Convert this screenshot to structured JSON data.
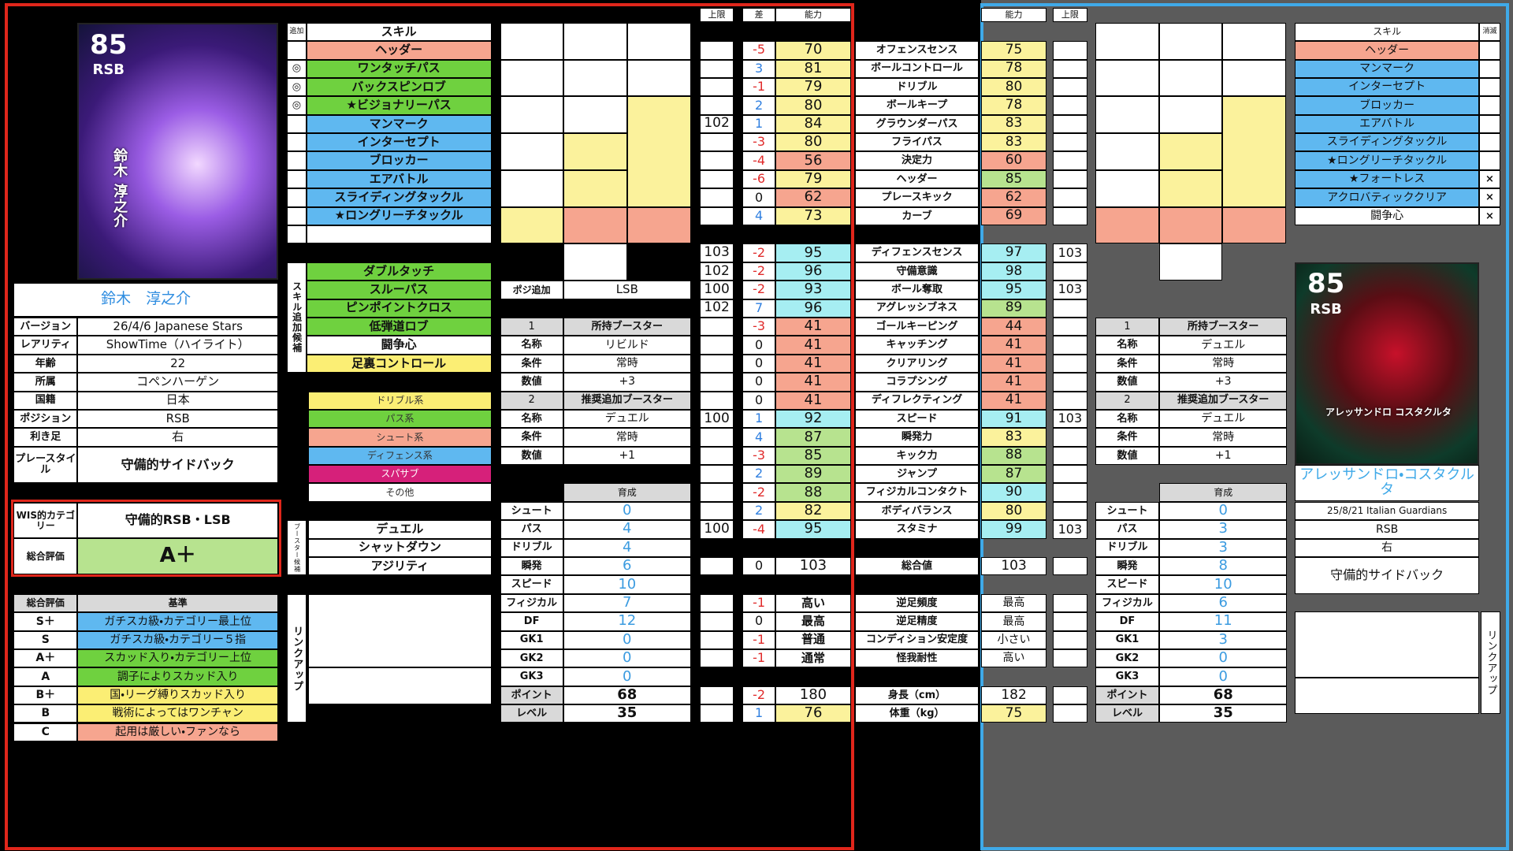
{
  "headers": {
    "cap": "上限",
    "diff": "差",
    "ability": "能力",
    "ability_r": "能力",
    "cap_r": "上限"
  },
  "player": {
    "card": {
      "rating": "85",
      "position": "RSB",
      "name": "鈴木 淳之介"
    },
    "name": "鈴木　淳之介",
    "info": [
      {
        "label": "バージョン",
        "value": "26/4/6 Japanese Stars"
      },
      {
        "label": "レアリティ",
        "value": "ShowTime（ハイライト）"
      },
      {
        "label": "年齢",
        "value": 22
      },
      {
        "label": "所属",
        "value": "コペンハーゲン"
      },
      {
        "label": "国籍",
        "value": "日本"
      },
      {
        "label": "ポジション",
        "value": "RSB"
      },
      {
        "label": "利き足",
        "value": "右"
      },
      {
        "label": "プレースタイル",
        "value": "守備的サイドバック"
      }
    ],
    "wis": {
      "label": "WIS的カテゴリー",
      "value": "守備的RSB・LSB"
    },
    "grade": {
      "label": "総合評価",
      "value": "A＋"
    }
  },
  "criteria": {
    "header": {
      "grade": "総合評価",
      "basis": "基準"
    },
    "rows": [
      {
        "grade": "S＋",
        "basis": "ガチスカ級・カテゴリー最上位"
      },
      {
        "grade": "S",
        "basis": "ガチスカ級・カテゴリー５指"
      },
      {
        "grade": "A＋",
        "basis": "スカッド入り・カテゴリー上位"
      },
      {
        "grade": "A",
        "basis": "調子によりスカッド入り"
      },
      {
        "grade": "B＋",
        "basis": "国・リーグ縛りスカッド入り"
      },
      {
        "grade": "B",
        "basis": "戦術によってはワンチャン"
      },
      {
        "grade": "C",
        "basis": "起用は厳しい・ファンなら"
      }
    ]
  },
  "skills": {
    "header": {
      "mark": "追加",
      "name": "スキル"
    },
    "rows": [
      {
        "name": "ヘッダー"
      },
      {
        "mark": "◎",
        "name": "ワンタッチパス"
      },
      {
        "mark": "◎",
        "name": "バックスピンロブ"
      },
      {
        "mark": "◎",
        "name": "★ビジョナリーパス"
      },
      {
        "name": "マンマーク"
      },
      {
        "name": "インターセプト"
      },
      {
        "name": "ブロッカー"
      },
      {
        "name": "エアバトル"
      },
      {
        "name": "スライディングタックル"
      },
      {
        "name": "★ロングリーチタックル"
      }
    ]
  },
  "candidates": {
    "label": "スキル追加候補",
    "rows": [
      "ダブルタッチ",
      "スルーパス",
      "ピンポイントクロス",
      "低弾道ロブ",
      "闘争心",
      "足裏コントロール"
    ]
  },
  "legend": [
    "ドリブル系",
    "パス系",
    "シュート系",
    "ディフェンス系",
    "スパサブ",
    "その他"
  ],
  "booster_candidates": {
    "label": "ブースター候補",
    "rows": [
      "デュエル",
      "シャットダウン",
      "アジリティ"
    ]
  },
  "linkup_left": "リンクアップ",
  "position_add": {
    "label": "ポジ追加",
    "value": "LSB"
  },
  "boosters_left": [
    {
      "no": 1,
      "title": "所持ブースター",
      "rows": [
        {
          "label": "名称",
          "value": "リビルド"
        },
        {
          "label": "条件",
          "value": "常時"
        },
        {
          "label": "数値",
          "value": "+3"
        }
      ]
    },
    {
      "no": 2,
      "title": "推奨追加ブースター",
      "rows": [
        {
          "label": "名称",
          "value": "デュエル"
        },
        {
          "label": "条件",
          "value": "常時"
        },
        {
          "label": "数値",
          "value": "+1"
        }
      ]
    }
  ],
  "training_left": {
    "title": "育成",
    "rows": [
      {
        "label": "シュート",
        "value": 0
      },
      {
        "label": "パス",
        "value": 4
      },
      {
        "label": "ドリブル",
        "value": 4
      },
      {
        "label": "瞬発",
        "value": 6
      },
      {
        "label": "スピード",
        "value": 10
      },
      {
        "label": "フィジカル",
        "value": 7
      },
      {
        "label": "DF",
        "value": 12
      },
      {
        "label": "GK1",
        "value": 0
      },
      {
        "label": "GK2",
        "value": 0
      },
      {
        "label": "GK3",
        "value": 0
      },
      {
        "label": "ポイント",
        "value": 68
      },
      {
        "label": "レベル",
        "value": 35
      }
    ]
  },
  "stats": [
    {
      "diff": -5,
      "left": 70,
      "name": "オフェンスセンス",
      "right": 75
    },
    {
      "diff": 3,
      "left": 81,
      "name": "ボールコントロール",
      "right": 78
    },
    {
      "diff": -1,
      "left": 79,
      "name": "ドリブル",
      "right": 80
    },
    {
      "diff": 2,
      "left": 80,
      "name": "ボールキープ",
      "right": 78
    },
    {
      "cap": 102,
      "diff": 1,
      "left": 84,
      "name": "グラウンダーパス",
      "right": 83
    },
    {
      "diff": -3,
      "left": 80,
      "name": "フライパス",
      "right": 83
    },
    {
      "diff": -4,
      "left": 56,
      "name": "決定力",
      "right": 60
    },
    {
      "diff": -6,
      "left": 79,
      "name": "ヘッダー",
      "right": 85
    },
    {
      "diff": 0,
      "left": 62,
      "name": "プレースキック",
      "right": 62
    },
    {
      "diff": 4,
      "left": 73,
      "name": "カーブ",
      "right": 69
    },
    {
      "cap": 103,
      "diff": -2,
      "left": 95,
      "name": "ディフェンスセンス",
      "right": 97,
      "cap_r": 103
    },
    {
      "cap": 102,
      "diff": -2,
      "left": 96,
      "name": "守備意識",
      "right": 98
    },
    {
      "cap": 100,
      "diff": -2,
      "left": 93,
      "name": "ボール奪取",
      "right": 95,
      "cap_r": 103
    },
    {
      "cap": 102,
      "diff": 7,
      "left": 96,
      "name": "アグレッシブネス",
      "right": 89
    },
    {
      "diff": -3,
      "left": 41,
      "name": "ゴールキーピング",
      "right": 44
    },
    {
      "diff": 0,
      "left": 41,
      "name": "キャッチング",
      "right": 41
    },
    {
      "diff": 0,
      "left": 41,
      "name": "クリアリング",
      "right": 41
    },
    {
      "diff": 0,
      "left": 41,
      "name": "コラプシング",
      "right": 41
    },
    {
      "diff": 0,
      "left": 41,
      "name": "ディフレクティング",
      "right": 41
    },
    {
      "cap": 100,
      "diff": 1,
      "left": 92,
      "name": "スピード",
      "right": 91,
      "cap_r": 103
    },
    {
      "diff": 4,
      "left": 87,
      "name": "瞬発力",
      "right": 83
    },
    {
      "diff": -3,
      "left": 85,
      "name": "キック力",
      "right": 88
    },
    {
      "diff": 2,
      "left": 89,
      "name": "ジャンプ",
      "right": 87
    },
    {
      "diff": -2,
      "left": 88,
      "name": "フィジカルコンタクト",
      "right": 90
    },
    {
      "diff": 2,
      "left": 82,
      "name": "ボディバランス",
      "right": 80
    },
    {
      "cap": 100,
      "diff": -4,
      "left": 95,
      "name": "スタミナ",
      "right": 99,
      "cap_r": 103
    },
    {
      "diff": 0,
      "left": 103,
      "name": "総合値",
      "right": 103
    },
    {
      "diff": -1,
      "left": "高い",
      "name": "逆足頻度",
      "right": "最高"
    },
    {
      "diff": 0,
      "left": "最高",
      "name": "逆足精度",
      "right": "最高"
    },
    {
      "diff": -1,
      "left": "普通",
      "name": "コンディション安定度",
      "right": "小さい"
    },
    {
      "diff": -1,
      "left": "通常",
      "name": "怪我耐性",
      "right": "高い"
    },
    {
      "diff": -2,
      "left": 180,
      "name": "身長（cm）",
      "right": 182
    },
    {
      "diff": 1,
      "left": 76,
      "name": "体重（kg）",
      "right": 75
    }
  ],
  "rival": {
    "card": {
      "rating": "85",
      "position": "RSB",
      "name": "アレッサンドロ コスタクルタ"
    },
    "name": "アレッサンドロ・コスタクルタ",
    "version": "25/8/21 Italian Guardians",
    "position": "RSB",
    "foot": "右",
    "style": "守備的サイドバック",
    "skills": {
      "header": {
        "name": "スキル",
        "lost": "消滅"
      },
      "rows": [
        {
          "name": "ヘッダー"
        },
        {
          "name": "マンマーク"
        },
        {
          "name": "インターセプト"
        },
        {
          "name": "ブロッカー"
        },
        {
          "name": "エアバトル"
        },
        {
          "name": "スライディングタックル"
        },
        {
          "name": "★ロングリーチタックル"
        },
        {
          "name": "★フォートレス",
          "lost": "×"
        },
        {
          "name": "アクロバティッククリア",
          "lost": "×"
        },
        {
          "name": "闘争心",
          "lost": "×"
        }
      ]
    },
    "boosters": [
      {
        "no": 1,
        "title": "所持ブースター",
        "rows": [
          {
            "label": "名称",
            "value": "デュエル"
          },
          {
            "label": "条件",
            "value": "常時"
          },
          {
            "label": "数値",
            "value": "+3"
          }
        ]
      },
      {
        "no": 2,
        "title": "推奨追加ブースター",
        "rows": [
          {
            "label": "名称",
            "value": "デュエル"
          },
          {
            "label": "条件",
            "value": "常時"
          },
          {
            "label": "数値",
            "value": "+1"
          }
        ]
      }
    ],
    "training": {
      "title": "育成",
      "rows": [
        {
          "label": "シュート",
          "value": 0
        },
        {
          "label": "パス",
          "value": 3
        },
        {
          "label": "ドリブル",
          "value": 3
        },
        {
          "label": "瞬発",
          "value": 8
        },
        {
          "label": "スピード",
          "value": 10
        },
        {
          "label": "フィジカル",
          "value": 6
        },
        {
          "label": "DF",
          "value": 11
        },
        {
          "label": "GK1",
          "value": 3
        },
        {
          "label": "GK2",
          "value": 0
        },
        {
          "label": "GK3",
          "value": 0
        },
        {
          "label": "ポイント",
          "value": 68
        },
        {
          "label": "レベル",
          "value": 35
        }
      ]
    },
    "linkup": "リンクアップ"
  }
}
